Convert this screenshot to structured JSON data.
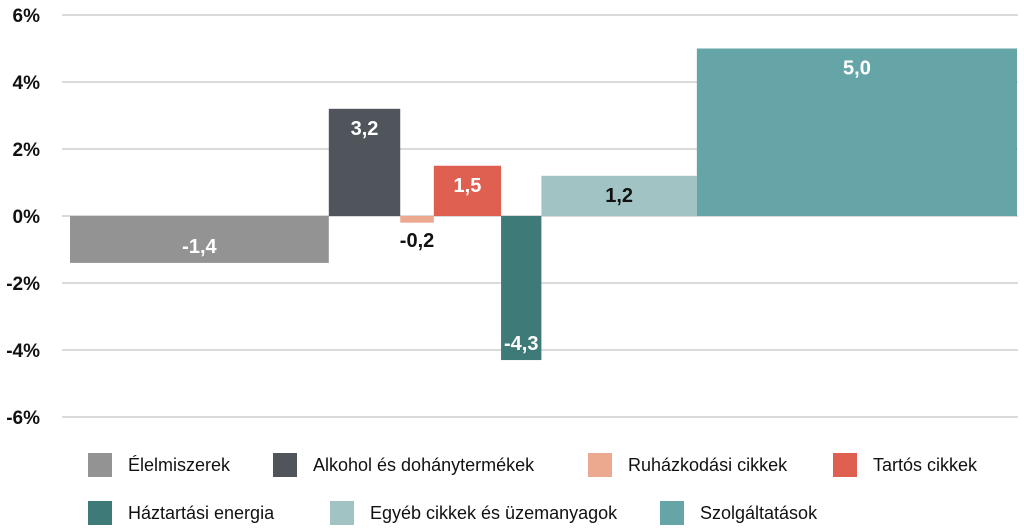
{
  "chart_data": {
    "type": "bar",
    "categories": [
      "Élelmiszerek",
      "Alkohol és dohánytermékek",
      "Ruházkodási cikkek",
      "Tartós cikkek",
      "Háztartási energia",
      "Egyéb cikkek és üzemanyagok",
      "Szolgáltatások"
    ],
    "values": [
      -1.4,
      3.2,
      -0.2,
      1.5,
      -4.3,
      1.2,
      5.0
    ],
    "value_labels": [
      "-1,4",
      "3,2",
      "-0,2",
      "1,5",
      "-4,3",
      "1,2",
      "5,0"
    ],
    "weights": [
      30.8,
      8.5,
      4.0,
      8.0,
      4.8,
      18.5,
      38.1
    ],
    "colors": [
      "#939393",
      "#4f555b",
      "#eda98f",
      "#df5f51",
      "#3e7a78",
      "#a2c3c4",
      "#66a5a7"
    ],
    "label_colors": [
      "#ffffff",
      "#ffffff",
      "#111111",
      "#ffffff",
      "#ffffff",
      "#111111",
      "#ffffff"
    ],
    "ylim": [
      -6,
      6
    ],
    "yticks": [
      6,
      4,
      2,
      0,
      -2,
      -4,
      -6
    ],
    "ytick_labels": [
      "6%",
      "4%",
      "2%",
      "0%",
      "-2%",
      "-4%",
      "-6%"
    ],
    "grid": true,
    "legend_position": "bottom"
  }
}
